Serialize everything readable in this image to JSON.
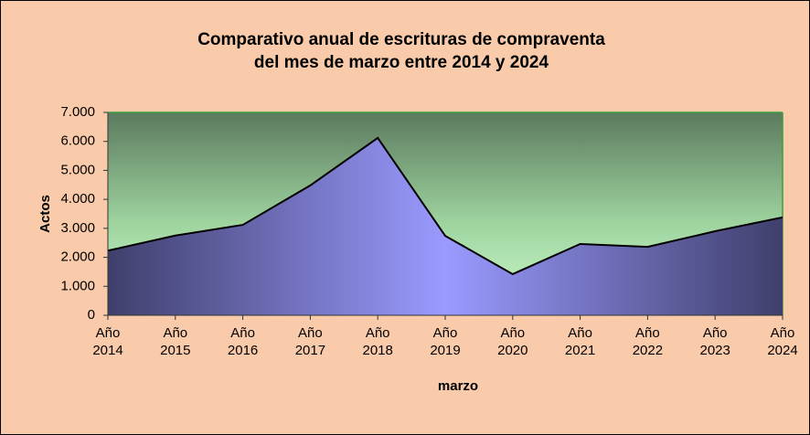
{
  "chart_data": {
    "type": "area",
    "title": [
      "Comparativo anual de escrituras de compraventa",
      "del mes de marzo entre 2014 y 2024"
    ],
    "y_label": "Actos",
    "x_label": "marzo",
    "categories": [
      "Año 2014",
      "Año 2015",
      "Año 2016",
      "Año 2017",
      "Año 2018",
      "Año 2019",
      "Año 2020",
      "Año 2021",
      "Año 2022",
      "Año 2023",
      "Año 2024"
    ],
    "values": [
      2230,
      2750,
      3120,
      4480,
      6120,
      2740,
      1420,
      2460,
      2360,
      2900,
      3380
    ],
    "ylim": [
      0,
      7000
    ],
    "yticks": [
      0,
      {
        "value": 1000,
        "label": "1.000"
      },
      {
        "value": 2000,
        "label": "2.000"
      },
      {
        "value": 3000,
        "label": "3.000"
      },
      {
        "value": 4000,
        "label": "4.000"
      },
      {
        "value": 5000,
        "label": "5.000"
      },
      {
        "value": 6000,
        "label": "6.000"
      },
      {
        "value": 7000,
        "label": "7.000"
      }
    ]
  }
}
